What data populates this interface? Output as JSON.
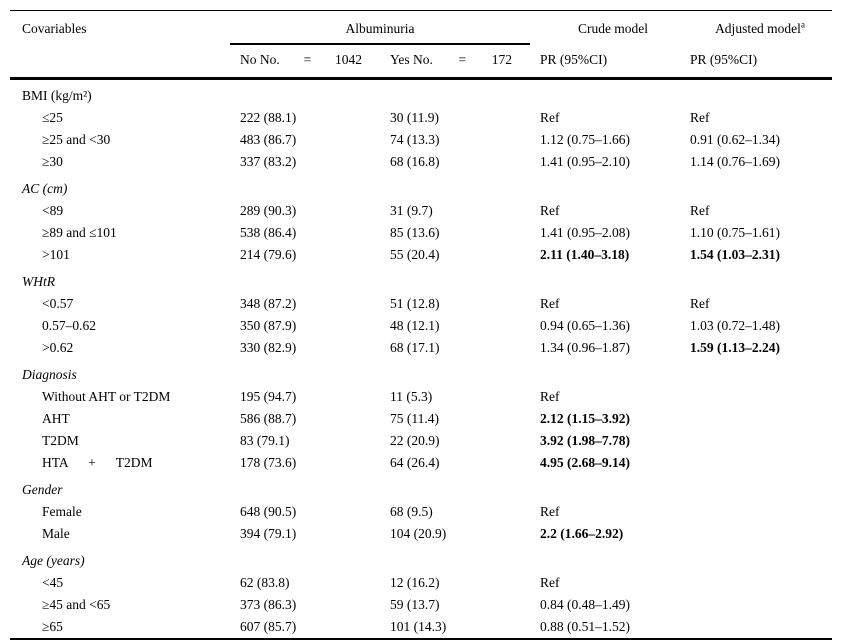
{
  "page": {
    "background": "#ffffff",
    "text_color": "#000000",
    "rule_color": "#000000"
  },
  "table": {
    "header": {
      "covariables": "Covariables",
      "albuminuria": "Albuminuria",
      "no": {
        "label": "No No.",
        "eq": "=",
        "value": "1042"
      },
      "yes": {
        "label": "Yes No.",
        "eq": "=",
        "value": "172"
      },
      "crude_model": "Crude model",
      "adjusted_model": "Adjusted model",
      "adjusted_model_superscript": "a",
      "crude_sub": "PR (95%CI)",
      "adjusted_sub": "PR (95%CI)"
    },
    "sections": [
      {
        "label": "BMI (kg/m²)",
        "italic": false,
        "rows": [
          {
            "label": "≤25",
            "no": "222 (88.1)",
            "yes": "30 (11.9)",
            "crude": "Ref",
            "crude_bold": false,
            "adjusted": "Ref",
            "adjusted_bold": false
          },
          {
            "label": "≥25 and <30",
            "no": "483 (86.7)",
            "yes": "74 (13.3)",
            "crude": "1.12 (0.75–1.66)",
            "crude_bold": false,
            "adjusted": "0.91 (0.62–1.34)",
            "adjusted_bold": false
          },
          {
            "label": "≥30",
            "no": "337 (83.2)",
            "yes": "68 (16.8)",
            "crude": "1.41 (0.95–2.10)",
            "crude_bold": false,
            "adjusted": "1.14 (0.76–1.69)",
            "adjusted_bold": false
          }
        ]
      },
      {
        "label": "AC (cm)",
        "italic": true,
        "rows": [
          {
            "label": "<89",
            "no": "289 (90.3)",
            "yes": "31 (9.7)",
            "crude": "Ref",
            "crude_bold": false,
            "adjusted": "Ref",
            "adjusted_bold": false
          },
          {
            "label": "≥89 and ≤101",
            "no": "538 (86.4)",
            "yes": "85 (13.6)",
            "crude": "1.41 (0.95–2.08)",
            "crude_bold": false,
            "adjusted": "1.10 (0.75–1.61)",
            "adjusted_bold": false
          },
          {
            "label": ">101",
            "no": "214 (79.6)",
            "yes": "55 (20.4)",
            "crude": "2.11 (1.40–3.18)",
            "crude_bold": true,
            "adjusted": "1.54 (1.03–2.31)",
            "adjusted_bold": true
          }
        ]
      },
      {
        "label": "WHtR",
        "italic": true,
        "rows": [
          {
            "label": "<0.57",
            "no": "348 (87.2)",
            "yes": "51 (12.8)",
            "crude": "Ref",
            "crude_bold": false,
            "adjusted": "Ref",
            "adjusted_bold": false
          },
          {
            "label": "0.57–0.62",
            "no": "350 (87.9)",
            "yes": "48 (12.1)",
            "crude": "0.94 (0.65–1.36)",
            "crude_bold": false,
            "adjusted": "1.03 (0.72–1.48)",
            "adjusted_bold": false
          },
          {
            "label": ">0.62",
            "no": "330 (82.9)",
            "yes": "68 (17.1)",
            "crude": "1.34 (0.96–1.87)",
            "crude_bold": false,
            "adjusted": "1.59 (1.13–2.24)",
            "adjusted_bold": true
          }
        ]
      },
      {
        "label": "Diagnosis",
        "italic": true,
        "rows": [
          {
            "label": "Without AHT or T2DM",
            "no": "195 (94.7)",
            "yes": "11 (5.3)",
            "crude": "Ref",
            "crude_bold": false,
            "adjusted": "",
            "adjusted_bold": false
          },
          {
            "label": "AHT",
            "no": "586 (88.7)",
            "yes": "75 (11.4)",
            "crude": "2.12 (1.15–3.92)",
            "crude_bold": true,
            "adjusted": "",
            "adjusted_bold": false
          },
          {
            "label": "T2DM",
            "no": "83 (79.1)",
            "yes": "22 (20.9)",
            "crude": "3.92 (1.98–7.78)",
            "crude_bold": true,
            "adjusted": "",
            "adjusted_bold": false
          },
          {
            "label": "HTA      +      T2DM",
            "no": "178 (73.6)",
            "yes": "64 (26.4)",
            "crude": "4.95 (2.68–9.14)",
            "crude_bold": true,
            "adjusted": "",
            "adjusted_bold": false
          }
        ]
      },
      {
        "label": "Gender",
        "italic": true,
        "rows": [
          {
            "label": "Female",
            "no": "648 (90.5)",
            "yes": "68 (9.5)",
            "crude": "Ref",
            "crude_bold": false,
            "adjusted": "",
            "adjusted_bold": false
          },
          {
            "label": "Male",
            "no": "394 (79.1)",
            "yes": "104 (20.9)",
            "crude": "2.2 (1.66–2.92)",
            "crude_bold": true,
            "adjusted": "",
            "adjusted_bold": false
          }
        ]
      },
      {
        "label": "Age (years)",
        "italic": true,
        "rows": [
          {
            "label": "<45",
            "no": "62 (83.8)",
            "yes": "12 (16.2)",
            "crude": "Ref",
            "crude_bold": false,
            "adjusted": "",
            "adjusted_bold": false
          },
          {
            "label": "≥45 and <65",
            "no": "373 (86.3)",
            "yes": "59 (13.7)",
            "crude": "0.84 (0.48–1.49)",
            "crude_bold": false,
            "adjusted": "",
            "adjusted_bold": false
          },
          {
            "label": "≥65",
            "no": "607 (85.7)",
            "yes": "101 (14.3)",
            "crude": "0.88 (0.51–1.52)",
            "crude_bold": false,
            "adjusted": "",
            "adjusted_bold": false
          }
        ]
      }
    ]
  }
}
